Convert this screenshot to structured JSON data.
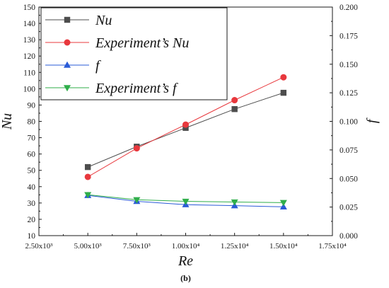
{
  "chart_data": {
    "type": "line",
    "xlabel": "Re",
    "ylabel_left": "Nu",
    "ylabel_right": "f",
    "caption": "(b)",
    "x_ticks": [
      2500,
      5000,
      7500,
      10000,
      12500,
      15000,
      17500
    ],
    "x_tick_labels": [
      "2.50x10³",
      "5.00x10³",
      "7.50x10³",
      "1.00x10⁴",
      "1.25x10⁴",
      "1.50x10⁴",
      "1.75x10⁴"
    ],
    "xlim": [
      2500,
      17500
    ],
    "ylim_left": [
      10,
      150
    ],
    "y_ticks_left": [
      10,
      20,
      30,
      40,
      50,
      60,
      70,
      80,
      90,
      100,
      110,
      120,
      130,
      140,
      150
    ],
    "y_tick_labels_left": [
      "10",
      "20",
      "30",
      "40",
      "50",
      "60",
      "70",
      "80",
      "90",
      "100",
      "110",
      "120",
      "130",
      "140",
      "150"
    ],
    "ylim_right": [
      0,
      0.2
    ],
    "y_ticks_right": [
      0,
      0.025,
      0.05,
      0.075,
      0.1,
      0.125,
      0.15,
      0.175,
      0.2
    ],
    "y_tick_labels_right": [
      "0.000",
      "0.025",
      "0.050",
      "0.075",
      "0.100",
      "0.125",
      "0.150",
      "0.175",
      "0.200"
    ],
    "legend_position": "top-left",
    "grid": false,
    "series": [
      {
        "name": "Nu",
        "axis": "left",
        "marker": "square",
        "color": "#4d4d4d",
        "x": [
          5000,
          7500,
          10000,
          12500,
          15000
        ],
        "y": [
          52,
          64.5,
          76,
          87.5,
          97.5
        ]
      },
      {
        "name": "Experiment’s Nu",
        "axis": "left",
        "marker": "circle",
        "color": "#e8383d",
        "x": [
          5000,
          7500,
          10000,
          12500,
          15000
        ],
        "y": [
          46,
          63.5,
          78,
          93,
          107
        ]
      },
      {
        "name": "f",
        "axis": "right",
        "marker": "triangle-up",
        "color": "#2a5bd7",
        "x": [
          5000,
          7500,
          10000,
          12500,
          15000
        ],
        "y": [
          0.0352,
          0.03,
          0.0271,
          0.0262,
          0.0252
        ]
      },
      {
        "name": "Experiment’s f",
        "axis": "right",
        "marker": "triangle-down",
        "color": "#2fae4a",
        "x": [
          5000,
          7500,
          10000,
          12500,
          15000
        ],
        "y": [
          0.0358,
          0.0314,
          0.03,
          0.0294,
          0.0289
        ]
      }
    ]
  }
}
